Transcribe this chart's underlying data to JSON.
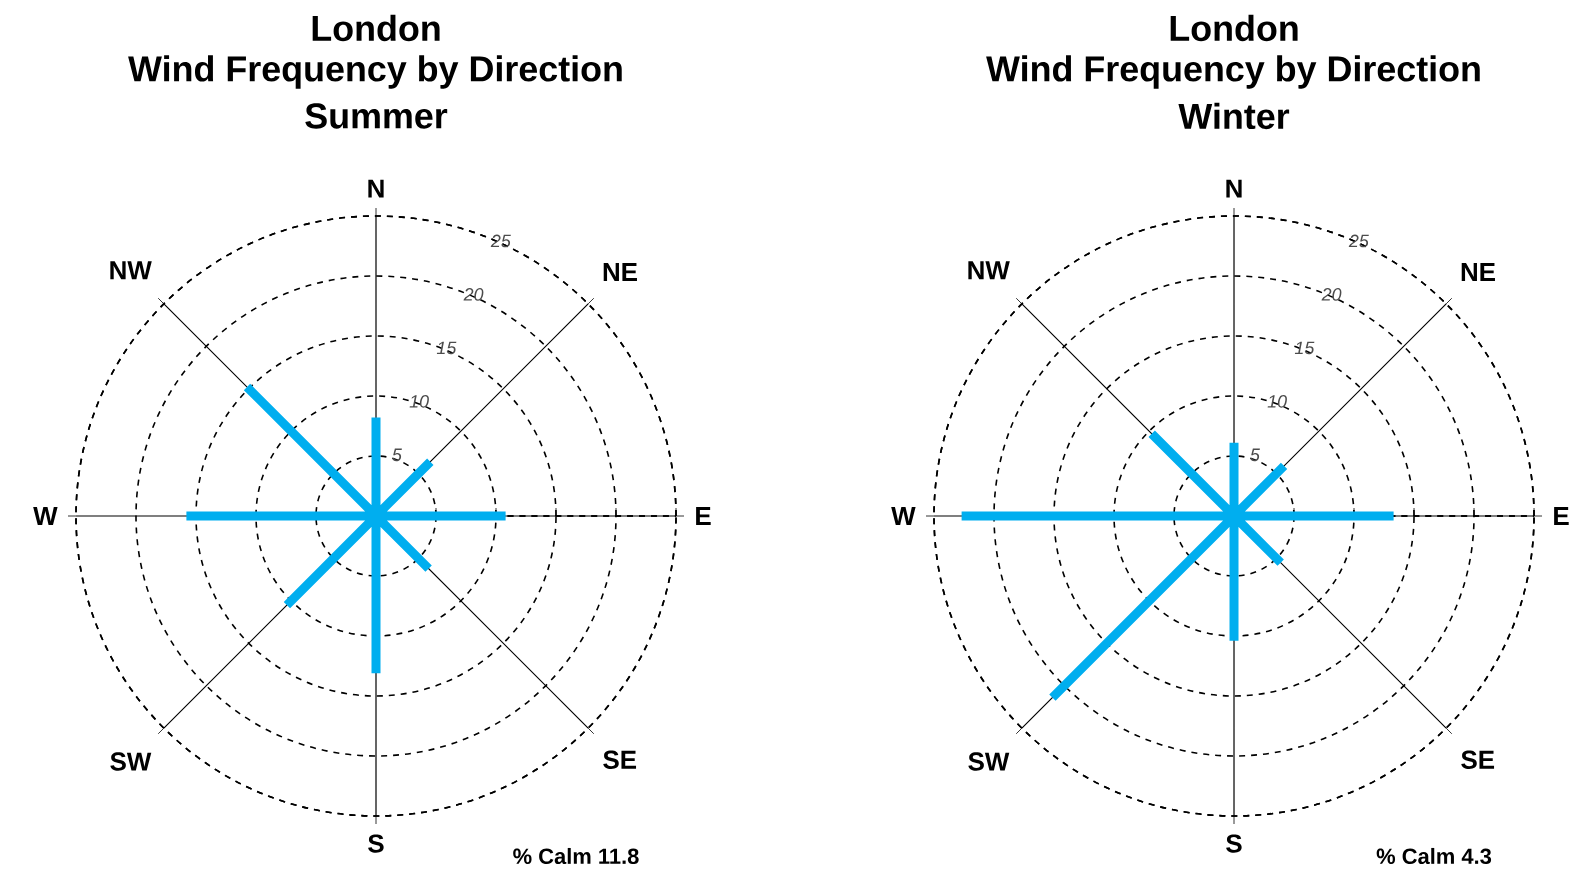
{
  "chart_data": [
    {
      "type": "radar",
      "title": "London",
      "subtitle": "Wind Frequency by Direction",
      "annotations": [
        "Summer",
        "% Calm 11.8"
      ],
      "categories": [
        "N",
        "NE",
        "E",
        "SE",
        "S",
        "SW",
        "W",
        "NW"
      ],
      "series": [
        {
          "type": "bar",
          "color": "#00aeef",
          "values": [
            8.2,
            6.4,
            10.8,
            6.2,
            13.1,
            10.5,
            15.8,
            15.2
          ]
        }
      ],
      "ylim": [
        0,
        25
      ],
      "yticks": [
        5,
        10,
        15,
        20,
        25
      ],
      "grid": true
    },
    {
      "type": "radar",
      "title": "London",
      "subtitle": "Wind Frequency by Direction",
      "annotations": [
        "Winter",
        "% Calm 4.3"
      ],
      "categories": [
        "N",
        "NE",
        "E",
        "SE",
        "S",
        "SW",
        "W",
        "NW"
      ],
      "series": [
        {
          "type": "bar",
          "color": "#00aeef",
          "values": [
            6.1,
            5.9,
            13.3,
            5.5,
            10.4,
            21.4,
            22.7,
            9.7
          ]
        }
      ],
      "ylim": [
        0,
        25
      ],
      "yticks": [
        5,
        10,
        15,
        20,
        25
      ],
      "grid": true
    }
  ]
}
